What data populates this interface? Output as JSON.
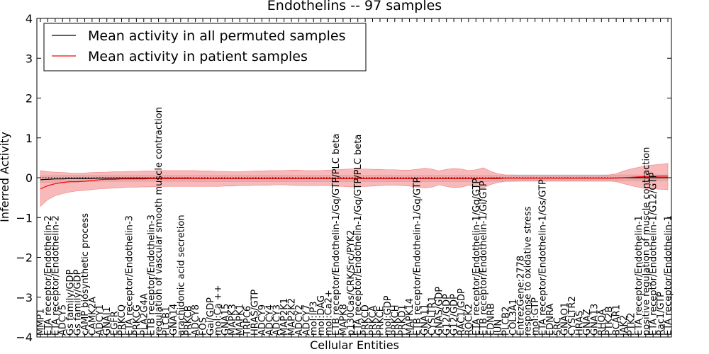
{
  "chart_data": {
    "type": "line",
    "title": "Endothelins -- 97 samples",
    "xlabel": "Cellular Entities",
    "ylabel": "Inferred Activity",
    "ylim": [
      -4,
      4
    ],
    "yticks": [
      -4,
      -3,
      -2,
      -1,
      0,
      1,
      2,
      3,
      4
    ],
    "ytick_labels": [
      "−4",
      "−3",
      "−2",
      "−1",
      "0",
      "1",
      "2",
      "3",
      "4"
    ],
    "grid": false,
    "legend_position": "top-left",
    "reference_line": 0,
    "categories": [
      "MMP1",
      "ETA receptor/Endothelin-2",
      "ETA receptor/Endothelin-2",
      "ADCY5",
      "Gs family/GDP",
      "Gs family/GDP",
      "cAMP biosynthetic process",
      "CAMK2A",
      "ADCY1",
      "GNAI1",
      "EGFR",
      "PRKCQ",
      "ETA receptor/Endothelin-3",
      "PRKCG",
      "PLA2G4A",
      "ETB receptor/Endothelin-3",
      "regulation of vascular smooth muscle contraction",
      "PLCB1",
      "GNA14",
      "arachidonic acid secretion",
      "PRKCB",
      "ADCY8",
      "FOS",
      "Gai/GDP",
      "mol:Ca ++",
      "GNA15",
      "MAPK3",
      "MAPK1",
      "TRPC6",
      "HRAS/GTP",
      "ADCY9",
      "ADCY4",
      "ADCY3",
      "MAP2K1",
      "MAP2K2",
      "ADCY2",
      "ADCY7",
      "mol:IP3",
      "mol:DAG",
      "mol:Ca2+",
      "ETB receptor/Endothelin-1/Gq/GTP/PLC beta",
      "MAPK8",
      "p130Cas/CRK/Src/PYK2",
      "ETA receptor/Endothelin-1/Gq/GTP/PLC beta",
      "PRKCD",
      "PRKCA",
      "PRKCE",
      "mol:GDP",
      "PRKCH",
      "PRKD1",
      "MAPK14",
      "ETB receptor/Endothelin-1/Gq/GTP",
      "GNA11",
      "CYSLTR1",
      "GNAS/GDP",
      "G12/GDP",
      "G12/GDP",
      "RAC1/GDP",
      "ROCK2",
      "ETA receptor/Endothelin-1/Gq/GTP",
      "ETB receptor/Endothelin-1/Gi/GTP",
      "EDNRB",
      "JUN",
      "PLCB2",
      "COL3A1",
      "EntrezGene:2778",
      "response to oxidative stress",
      "mol:GTP",
      "ETA receptor/Endothelin-1/Gs/GTP",
      "EDNRA",
      "SRC",
      "GNAO1",
      "CYSLTR2",
      "HRAS",
      "GNAZ",
      "GNA13",
      "RHOA",
      "PTK2B",
      "BCAR1",
      "JAK2",
      "PTK2",
      "ETA receptor/Endothelin-1",
      "positive regulation of muscle contraction",
      "ETA receptor/Endothelin-1/G12/GTP",
      "Rac1/GTP",
      "ETA receptor/Endothelin-1"
    ],
    "series": [
      {
        "name": "Mean activity in all permuted samples",
        "color": "#000000",
        "band_color": "#bbbbbb",
        "mean": [
          -0.05,
          -0.04,
          -0.03,
          -0.03,
          -0.02,
          -0.02,
          -0.02,
          -0.02,
          -0.01,
          -0.01,
          -0.01,
          -0.01,
          -0.01,
          -0.01,
          -0.01,
          -0.01,
          -0.01,
          -0.01,
          -0.01,
          -0.01,
          -0.01,
          -0.02,
          -0.02,
          -0.02,
          -0.02,
          -0.02,
          -0.02,
          -0.02,
          -0.02,
          -0.02,
          -0.02,
          -0.02,
          -0.02,
          -0.02,
          -0.02,
          -0.02,
          -0.02,
          -0.02,
          -0.02,
          -0.02,
          -0.02,
          -0.02,
          -0.02,
          -0.02,
          -0.02,
          -0.02,
          -0.02,
          -0.02,
          -0.02,
          -0.02,
          -0.02,
          -0.02,
          -0.02,
          -0.02,
          -0.02,
          -0.02,
          -0.02,
          -0.02,
          -0.02,
          -0.02,
          -0.02,
          -0.01,
          -0.01,
          -0.01,
          -0.01,
          -0.01,
          -0.01,
          -0.01,
          -0.01,
          -0.01,
          -0.01,
          -0.01,
          -0.01,
          -0.01,
          -0.01,
          -0.01,
          -0.01,
          -0.01,
          -0.01,
          0.0,
          0.0,
          0.0,
          0.0,
          0.0,
          0.0,
          0.0
        ],
        "upper": [
          0.05,
          0.05,
          0.06,
          0.06,
          0.06,
          0.06,
          0.06,
          0.06,
          0.06,
          0.06,
          0.06,
          0.06,
          0.06,
          0.06,
          0.06,
          0.06,
          0.06,
          0.06,
          0.06,
          0.06,
          0.06,
          0.06,
          0.06,
          0.06,
          0.06,
          0.06,
          0.06,
          0.06,
          0.06,
          0.06,
          0.06,
          0.06,
          0.06,
          0.06,
          0.06,
          0.06,
          0.06,
          0.06,
          0.06,
          0.06,
          0.06,
          0.06,
          0.06,
          0.06,
          0.06,
          0.06,
          0.06,
          0.06,
          0.06,
          0.06,
          0.06,
          0.06,
          0.06,
          0.06,
          0.06,
          0.06,
          0.06,
          0.06,
          0.06,
          0.06,
          0.06,
          0.06,
          0.06,
          0.06,
          0.07,
          0.07,
          0.07,
          0.07,
          0.07,
          0.07,
          0.07,
          0.07,
          0.07,
          0.07,
          0.07,
          0.07,
          0.07,
          0.07,
          0.07,
          0.07,
          0.07,
          0.07,
          0.07,
          0.07,
          0.07,
          0.07
        ],
        "lower": [
          -0.12,
          -0.12,
          -0.11,
          -0.11,
          -0.1,
          -0.1,
          -0.1,
          -0.1,
          -0.09,
          -0.09,
          -0.09,
          -0.09,
          -0.09,
          -0.09,
          -0.09,
          -0.09,
          -0.09,
          -0.09,
          -0.09,
          -0.09,
          -0.09,
          -0.1,
          -0.1,
          -0.1,
          -0.1,
          -0.1,
          -0.1,
          -0.1,
          -0.1,
          -0.1,
          -0.1,
          -0.1,
          -0.1,
          -0.1,
          -0.1,
          -0.1,
          -0.1,
          -0.1,
          -0.1,
          -0.1,
          -0.1,
          -0.1,
          -0.1,
          -0.1,
          -0.1,
          -0.1,
          -0.1,
          -0.1,
          -0.1,
          -0.1,
          -0.1,
          -0.1,
          -0.1,
          -0.1,
          -0.1,
          -0.1,
          -0.1,
          -0.1,
          -0.1,
          -0.1,
          -0.1,
          -0.09,
          -0.09,
          -0.09,
          -0.09,
          -0.09,
          -0.09,
          -0.09,
          -0.09,
          -0.09,
          -0.09,
          -0.09,
          -0.09,
          -0.09,
          -0.09,
          -0.09,
          -0.09,
          -0.09,
          -0.09,
          -0.08,
          -0.08,
          -0.08,
          -0.08,
          -0.08,
          -0.08,
          -0.08
        ]
      },
      {
        "name": "Mean activity in patient samples",
        "color": "#ff0000",
        "band_color": "#f08080",
        "mean": [
          -0.28,
          -0.2,
          -0.15,
          -0.12,
          -0.1,
          -0.1,
          -0.09,
          -0.07,
          -0.05,
          -0.04,
          -0.04,
          -0.03,
          -0.03,
          -0.03,
          -0.03,
          -0.02,
          -0.02,
          -0.02,
          -0.02,
          -0.02,
          -0.02,
          -0.02,
          -0.02,
          -0.02,
          -0.02,
          -0.02,
          -0.02,
          -0.02,
          -0.02,
          -0.02,
          -0.02,
          -0.02,
          -0.02,
          -0.02,
          -0.02,
          -0.02,
          -0.02,
          -0.02,
          -0.02,
          -0.02,
          -0.02,
          -0.02,
          -0.02,
          -0.02,
          -0.02,
          -0.02,
          -0.02,
          -0.02,
          -0.02,
          -0.02,
          -0.02,
          -0.02,
          -0.02,
          -0.02,
          -0.02,
          -0.02,
          -0.02,
          -0.02,
          -0.02,
          -0.02,
          -0.02,
          -0.02,
          -0.02,
          -0.01,
          -0.01,
          -0.01,
          -0.01,
          -0.01,
          -0.01,
          -0.01,
          -0.01,
          -0.01,
          -0.01,
          -0.01,
          -0.01,
          -0.01,
          -0.01,
          -0.01,
          -0.01,
          0.0,
          0.01,
          0.02,
          0.03,
          0.03,
          0.04,
          0.04
        ],
        "upper": [
          0.18,
          0.15,
          0.14,
          0.13,
          0.12,
          0.11,
          0.12,
          0.13,
          0.14,
          0.14,
          0.15,
          0.15,
          0.16,
          0.16,
          0.17,
          0.17,
          0.18,
          0.18,
          0.18,
          0.18,
          0.18,
          0.18,
          0.17,
          0.17,
          0.16,
          0.16,
          0.15,
          0.15,
          0.16,
          0.17,
          0.17,
          0.18,
          0.18,
          0.18,
          0.19,
          0.19,
          0.18,
          0.18,
          0.18,
          0.19,
          0.2,
          0.21,
          0.22,
          0.22,
          0.22,
          0.21,
          0.21,
          0.2,
          0.2,
          0.19,
          0.19,
          0.21,
          0.24,
          0.22,
          0.17,
          0.21,
          0.23,
          0.22,
          0.18,
          0.2,
          0.25,
          0.16,
          0.1,
          0.07,
          0.07,
          0.06,
          0.06,
          0.06,
          0.06,
          0.06,
          0.06,
          0.06,
          0.06,
          0.06,
          0.06,
          0.06,
          0.06,
          0.07,
          0.1,
          0.17,
          0.22,
          0.26,
          0.3,
          0.32,
          0.34,
          0.36
        ],
        "lower": [
          -0.72,
          -0.55,
          -0.45,
          -0.4,
          -0.36,
          -0.33,
          -0.32,
          -0.3,
          -0.28,
          -0.27,
          -0.26,
          -0.25,
          -0.24,
          -0.24,
          -0.23,
          -0.23,
          -0.22,
          -0.22,
          -0.22,
          -0.22,
          -0.22,
          -0.22,
          -0.22,
          -0.22,
          -0.22,
          -0.21,
          -0.21,
          -0.2,
          -0.2,
          -0.19,
          -0.19,
          -0.19,
          -0.18,
          -0.18,
          -0.19,
          -0.2,
          -0.2,
          -0.2,
          -0.2,
          -0.2,
          -0.21,
          -0.22,
          -0.23,
          -0.23,
          -0.22,
          -0.21,
          -0.2,
          -0.19,
          -0.19,
          -0.2,
          -0.21,
          -0.24,
          -0.26,
          -0.24,
          -0.18,
          -0.22,
          -0.25,
          -0.24,
          -0.19,
          -0.21,
          -0.26,
          -0.17,
          -0.12,
          -0.09,
          -0.09,
          -0.08,
          -0.08,
          -0.08,
          -0.08,
          -0.08,
          -0.08,
          -0.08,
          -0.08,
          -0.08,
          -0.08,
          -0.08,
          -0.08,
          -0.08,
          -0.1,
          -0.15,
          -0.2,
          -0.24,
          -0.27,
          -0.28,
          -0.29,
          -0.3
        ]
      }
    ]
  }
}
